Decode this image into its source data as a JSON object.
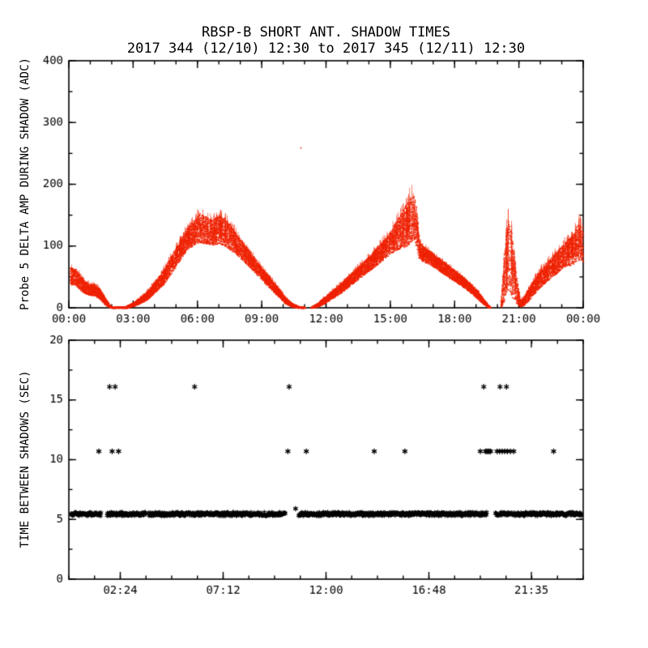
{
  "page": {
    "title": "RBSP-B SHORT ANT. SHADOW TIMES",
    "subtitle": "2017 344 (12/10) 12:30 to 2017 345 (12/11) 12:30"
  },
  "chart_data": [
    {
      "type": "scatter",
      "title": "RBSP-B SHORT ANT. SHADOW TIMES",
      "subtitle": "2017 344 (12/10) 12:30 to 2017 345 (12/11) 12:30",
      "xlabel": "",
      "ylabel": "Probe 5 DELTA AMP DURING SHADOW (ADC)",
      "marker": "dot",
      "color": "#ee2200",
      "xlim": [
        0,
        24
      ],
      "ylim": [
        0,
        400
      ],
      "x_major_ticks": [
        0,
        3,
        6,
        9,
        12,
        15,
        18,
        21,
        24
      ],
      "x_tick_labels": [
        "00:00",
        "03:00",
        "06:00",
        "09:00",
        "12:00",
        "15:00",
        "18:00",
        "21:00",
        "00:00"
      ],
      "x_minor_step": 1,
      "y_major_ticks": [
        0,
        100,
        200,
        300,
        400
      ],
      "y_tick_labels": [
        "0",
        "100",
        "200",
        "300",
        "400"
      ],
      "y_minor_step": 50,
      "envelope_segments": [
        [
          [
            0.05,
            52,
            14
          ],
          [
            0.3,
            50,
            13
          ],
          [
            0.5,
            42,
            12
          ],
          [
            0.7,
            34,
            10
          ],
          [
            0.95,
            30,
            9
          ],
          [
            1.2,
            29,
            9
          ],
          [
            1.45,
            22,
            8
          ],
          [
            1.7,
            10,
            5
          ],
          [
            1.9,
            3,
            2
          ],
          [
            2.0,
            1,
            1
          ]
        ],
        [
          [
            2.0,
            0.8,
            0.8
          ],
          [
            2.7,
            1.5,
            1.5
          ]
        ],
        [
          [
            2.7,
            2,
            2
          ],
          [
            3.0,
            6,
            3
          ],
          [
            3.3,
            12,
            5
          ],
          [
            3.7,
            22,
            7
          ],
          [
            4.0,
            34,
            9
          ],
          [
            4.4,
            50,
            12
          ],
          [
            4.8,
            72,
            14
          ],
          [
            5.2,
            95,
            16
          ],
          [
            5.5,
            112,
            18
          ],
          [
            5.8,
            122,
            20
          ],
          [
            6.1,
            130,
            24
          ],
          [
            6.4,
            126,
            22
          ],
          [
            6.7,
            122,
            20
          ],
          [
            7.0,
            128,
            24
          ],
          [
            7.3,
            122,
            22
          ],
          [
            7.6,
            112,
            20
          ],
          [
            7.9,
            100,
            16
          ],
          [
            8.2,
            88,
            14
          ],
          [
            8.6,
            72,
            12
          ],
          [
            9.0,
            56,
            10
          ],
          [
            9.4,
            40,
            9
          ],
          [
            9.8,
            24,
            7
          ],
          [
            10.1,
            12,
            5
          ],
          [
            10.4,
            5,
            3
          ],
          [
            10.7,
            1.5,
            1.5
          ],
          [
            11.0,
            0.8,
            0.8
          ]
        ],
        [
          [
            11.3,
            1,
            1
          ],
          [
            11.6,
            5,
            3
          ],
          [
            11.9,
            12,
            5
          ],
          [
            12.2,
            20,
            6
          ],
          [
            12.6,
            30,
            8
          ],
          [
            13.0,
            42,
            9
          ],
          [
            13.4,
            54,
            10
          ],
          [
            13.8,
            66,
            11
          ],
          [
            14.2,
            78,
            13
          ],
          [
            14.6,
            92,
            15
          ],
          [
            15.0,
            106,
            18
          ],
          [
            15.3,
            118,
            24
          ],
          [
            15.6,
            130,
            32
          ],
          [
            15.9,
            140,
            38
          ],
          [
            16.1,
            148,
            36
          ],
          [
            16.25,
            120,
            30
          ],
          [
            16.35,
            92,
            14
          ],
          [
            16.6,
            86,
            12
          ],
          [
            16.9,
            80,
            11
          ],
          [
            17.2,
            72,
            10
          ],
          [
            17.6,
            62,
            10
          ],
          [
            18.0,
            52,
            9
          ],
          [
            18.4,
            42,
            8
          ],
          [
            18.8,
            30,
            7
          ],
          [
            19.1,
            20,
            6
          ],
          [
            19.35,
            10,
            4
          ],
          [
            19.55,
            3,
            2
          ],
          [
            19.65,
            1,
            1
          ]
        ],
        [
          [
            20.15,
            4,
            3
          ],
          [
            20.3,
            50,
            40
          ],
          [
            20.5,
            90,
            60
          ],
          [
            20.7,
            60,
            45
          ],
          [
            20.9,
            25,
            18
          ],
          [
            21.05,
            8,
            6
          ],
          [
            21.2,
            10,
            6
          ],
          [
            21.4,
            20,
            10
          ],
          [
            21.7,
            35,
            12
          ],
          [
            22.0,
            48,
            14
          ],
          [
            22.4,
            62,
            16
          ],
          [
            22.8,
            75,
            18
          ],
          [
            23.2,
            88,
            20
          ],
          [
            23.5,
            95,
            25
          ],
          [
            23.8,
            108,
            30
          ],
          [
            23.98,
            100,
            25
          ]
        ]
      ],
      "outliers": [
        [
          10.8,
          260
        ]
      ]
    },
    {
      "type": "scatter",
      "title": "",
      "xlabel": "",
      "ylabel": "TIME BETWEEN SHADOWS (SEC)",
      "marker": "asterisk",
      "color": "#000000",
      "xlim": [
        0,
        24
      ],
      "ylim": [
        0,
        20
      ],
      "x_major_ticks": [
        2.4,
        7.2,
        12.0,
        16.8,
        21.583
      ],
      "x_tick_labels": [
        "02:24",
        "07:12",
        "12:00",
        "16:48",
        "21:35"
      ],
      "x_minor_step": 1.2,
      "y_major_ticks": [
        0,
        5,
        10,
        15,
        20
      ],
      "y_tick_labels": [
        "0",
        "5",
        "10",
        "15",
        "20"
      ],
      "y_minor_step": 2.5,
      "band_value": 5.45,
      "band_segments": [
        [
          0.1,
          1.52
        ],
        [
          1.78,
          3.62
        ],
        [
          3.72,
          10.1
        ],
        [
          10.72,
          19.5
        ],
        [
          19.9,
          23.93
        ]
      ],
      "mid_value": 10.7,
      "mid_times": [
        1.4,
        2.02,
        2.32,
        10.22,
        11.08,
        14.25,
        15.68,
        19.2,
        19.44,
        19.5,
        19.56,
        19.62,
        19.68,
        19.98,
        20.1,
        20.22,
        20.34,
        20.46,
        20.6,
        20.76,
        22.62
      ],
      "high_value": 16.1,
      "high_times": [
        1.9,
        2.16,
        5.87,
        10.28,
        19.36,
        20.12,
        20.42
      ],
      "extra_points": [
        [
          10.58,
          5.9
        ]
      ]
    }
  ]
}
